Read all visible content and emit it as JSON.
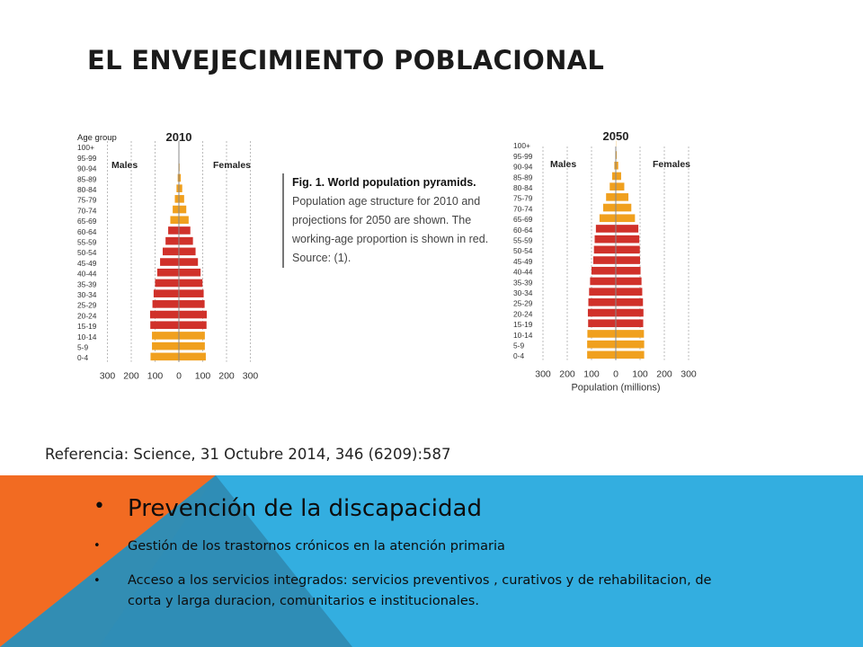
{
  "slide": {
    "title": "EL ENVEJECIMIENTO POBLACIONAL",
    "reference": "Referencia: Science, 31 Octubre 2014, 346 (6209):587",
    "caption_bold": "Fig. 1. World population pyramids.",
    "caption_rest": " Population age structure for 2010 and projections for 2050 are shown. The working-age proportion is shown in red. Source: (1).",
    "bullets": {
      "main": "Prevención de la discapacidad",
      "sub1": "Gestión de los trastornos crónicos  en la atención primaria",
      "sub2": "Acceso a los servicios integrados: servicios preventivos , curativos y de rehabilitacion, de corta y larga duracion, comunitarios e institucionales."
    },
    "colors": {
      "working_age": "#d0312a",
      "dependent": "#f0a01e",
      "band_blue": "#33aee0",
      "band_orange": "#f26b22",
      "band_teal": "#2f8db6"
    }
  },
  "chart_data": [
    {
      "type": "bar",
      "subtype": "population-pyramid",
      "title": "2010",
      "age_axis_label": "Age group",
      "left_label": "Males",
      "right_label": "Females",
      "xlabel": "",
      "xlim": [
        -300,
        300
      ],
      "x_ticks": [
        "300",
        "200",
        "100",
        "0",
        "100",
        "200",
        "300"
      ],
      "age_groups": [
        "100+",
        "95-99",
        "90-94",
        "85-89",
        "80-84",
        "75-79",
        "70-74",
        "65-69",
        "60-64",
        "55-59",
        "50-54",
        "45-49",
        "40-44",
        "35-39",
        "30-34",
        "25-29",
        "20-24",
        "15-19",
        "10-14",
        "5-9",
        "0-4"
      ],
      "series": [
        {
          "name": "Males",
          "values": [
            0,
            0,
            2,
            5,
            10,
            17,
            26,
            36,
            45,
            56,
            68,
            79,
            91,
            100,
            106,
            111,
            121,
            120,
            113,
            113,
            119
          ]
        },
        {
          "name": "Females",
          "values": [
            0,
            1,
            3,
            8,
            14,
            22,
            31,
            41,
            48,
            59,
            70,
            80,
            91,
            99,
            104,
            108,
            117,
            116,
            109,
            109,
            113
          ]
        }
      ],
      "working_age_groups": [
        "15-19",
        "20-24",
        "25-29",
        "30-34",
        "35-39",
        "40-44",
        "45-49",
        "50-54",
        "55-59",
        "60-64"
      ]
    },
    {
      "type": "bar",
      "subtype": "population-pyramid",
      "title": "2050",
      "age_axis_label": "",
      "left_label": "Males",
      "right_label": "Females",
      "xlabel": "Population (millions)",
      "xlim": [
        -300,
        300
      ],
      "x_ticks": [
        "300",
        "200",
        "100",
        "0",
        "100",
        "200",
        "300"
      ],
      "age_groups": [
        "100+",
        "95-99",
        "90-94",
        "85-89",
        "80-84",
        "75-79",
        "70-74",
        "65-69",
        "60-64",
        "55-59",
        "50-54",
        "45-49",
        "40-44",
        "35-39",
        "30-34",
        "25-29",
        "20-24",
        "15-19",
        "10-14",
        "5-9",
        "0-4"
      ],
      "series": [
        {
          "name": "Males",
          "values": [
            0,
            2,
            6,
            15,
            25,
            40,
            52,
            67,
            82,
            87,
            90,
            93,
            100,
            106,
            110,
            113,
            115,
            114,
            117,
            118,
            118
          ]
        },
        {
          "name": "Females",
          "values": [
            1,
            4,
            10,
            22,
            35,
            52,
            64,
            79,
            93,
            97,
            99,
            100,
            102,
            106,
            109,
            112,
            114,
            113,
            116,
            117,
            117
          ]
        }
      ],
      "working_age_groups": [
        "15-19",
        "20-24",
        "25-29",
        "30-34",
        "35-39",
        "40-44",
        "45-49",
        "50-54",
        "55-59",
        "60-64"
      ]
    }
  ]
}
